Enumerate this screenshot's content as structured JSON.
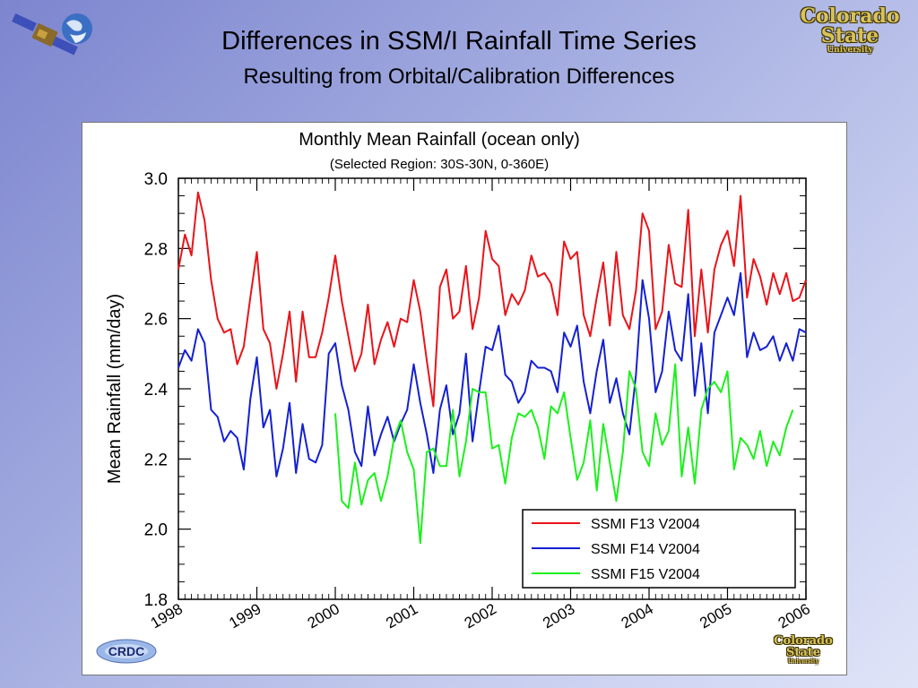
{
  "slide": {
    "title": "Differences in SSM/I Rainfall Time Series",
    "subtitle": "Resulting from Orbital/Calibration Differences"
  },
  "logos": {
    "csu_line1": "Colorado",
    "csu_line2": "State",
    "csu_line3": "University",
    "crdc": "CRDC"
  },
  "colors": {
    "f13": "#e8141a",
    "f14": "#1420d2",
    "f15": "#1cf01c"
  },
  "chart_data": {
    "type": "line",
    "title": "Monthly Mean Rainfall (ocean only)",
    "subtitle": "(Selected Region: 30S-30N, 0-360E)",
    "xlabel": "",
    "ylabel": "Mean Rainfall (mm/day)",
    "xlim": [
      1998.0,
      2006.0
    ],
    "ylim": [
      1.8,
      3.0
    ],
    "yticks": [
      "1.8",
      "2.0",
      "2.2",
      "2.4",
      "2.6",
      "2.8",
      "3.0"
    ],
    "xticks": [
      "1998",
      "1999",
      "2000",
      "2001",
      "2002",
      "2003",
      "2004",
      "2005",
      "2006"
    ],
    "grid": false,
    "legend_position": "bottom-right",
    "series": [
      {
        "name": "SSMI F13 V2004",
        "x_start": 1998.0,
        "step": 0.08333,
        "values": [
          2.74,
          2.84,
          2.78,
          2.96,
          2.88,
          2.71,
          2.6,
          2.56,
          2.57,
          2.47,
          2.52,
          2.66,
          2.79,
          2.57,
          2.53,
          2.4,
          2.5,
          2.62,
          2.42,
          2.62,
          2.49,
          2.49,
          2.56,
          2.66,
          2.78,
          2.65,
          2.55,
          2.45,
          2.5,
          2.64,
          2.47,
          2.54,
          2.59,
          2.52,
          2.6,
          2.59,
          2.71,
          2.62,
          2.48,
          2.35,
          2.69,
          2.74,
          2.6,
          2.62,
          2.75,
          2.57,
          2.66,
          2.85,
          2.77,
          2.75,
          2.61,
          2.67,
          2.64,
          2.68,
          2.78,
          2.72,
          2.73,
          2.7,
          2.61,
          2.82,
          2.77,
          2.79,
          2.61,
          2.55,
          2.66,
          2.76,
          2.58,
          2.79,
          2.61,
          2.57,
          2.68,
          2.9,
          2.85,
          2.57,
          2.62,
          2.81,
          2.7,
          2.69,
          2.91,
          2.55,
          2.74,
          2.56,
          2.74,
          2.81,
          2.85,
          2.75,
          2.95,
          2.66,
          2.77,
          2.72,
          2.64,
          2.73,
          2.67,
          2.73,
          2.65,
          2.66,
          2.71
        ]
      },
      {
        "name": "SSMI F14 V2004",
        "x_start": 1998.0,
        "step": 0.08333,
        "values": [
          2.46,
          2.51,
          2.48,
          2.57,
          2.53,
          2.34,
          2.32,
          2.25,
          2.28,
          2.26,
          2.17,
          2.37,
          2.49,
          2.29,
          2.34,
          2.15,
          2.23,
          2.36,
          2.16,
          2.3,
          2.2,
          2.19,
          2.24,
          2.5,
          2.53,
          2.41,
          2.34,
          2.22,
          2.18,
          2.35,
          2.21,
          2.27,
          2.32,
          2.25,
          2.3,
          2.34,
          2.47,
          2.36,
          2.27,
          2.16,
          2.34,
          2.41,
          2.27,
          2.33,
          2.5,
          2.25,
          2.39,
          2.52,
          2.51,
          2.58,
          2.44,
          2.42,
          2.36,
          2.39,
          2.48,
          2.46,
          2.46,
          2.45,
          2.39,
          2.56,
          2.52,
          2.58,
          2.42,
          2.33,
          2.45,
          2.54,
          2.36,
          2.43,
          2.33,
          2.27,
          2.44,
          2.71,
          2.6,
          2.39,
          2.45,
          2.62,
          2.51,
          2.48,
          2.67,
          2.38,
          2.53,
          2.33,
          2.56,
          2.61,
          2.66,
          2.61,
          2.73,
          2.49,
          2.56,
          2.51,
          2.52,
          2.55,
          2.48,
          2.53,
          2.48,
          2.57,
          2.56
        ]
      },
      {
        "name": "SSMI F15 V2004",
        "x_start": 2000.0,
        "step": 0.08333,
        "values": [
          2.33,
          2.08,
          2.06,
          2.19,
          2.07,
          2.14,
          2.16,
          2.08,
          2.15,
          2.26,
          2.31,
          2.22,
          2.17,
          1.96,
          2.22,
          2.23,
          2.18,
          2.18,
          2.34,
          2.15,
          2.25,
          2.4,
          2.39,
          2.39,
          2.23,
          2.24,
          2.13,
          2.26,
          2.33,
          2.32,
          2.34,
          2.29,
          2.2,
          2.35,
          2.33,
          2.39,
          2.26,
          2.14,
          2.19,
          2.31,
          2.11,
          2.3,
          2.19,
          2.08,
          2.22,
          2.45,
          2.4,
          2.22,
          2.18,
          2.33,
          2.24,
          2.28,
          2.47,
          2.15,
          2.29,
          2.13,
          2.34,
          2.4,
          2.42,
          2.39,
          2.45,
          2.17,
          2.26,
          2.24,
          2.2,
          2.28,
          2.18,
          2.25,
          2.21,
          2.29,
          2.34
        ]
      }
    ]
  }
}
